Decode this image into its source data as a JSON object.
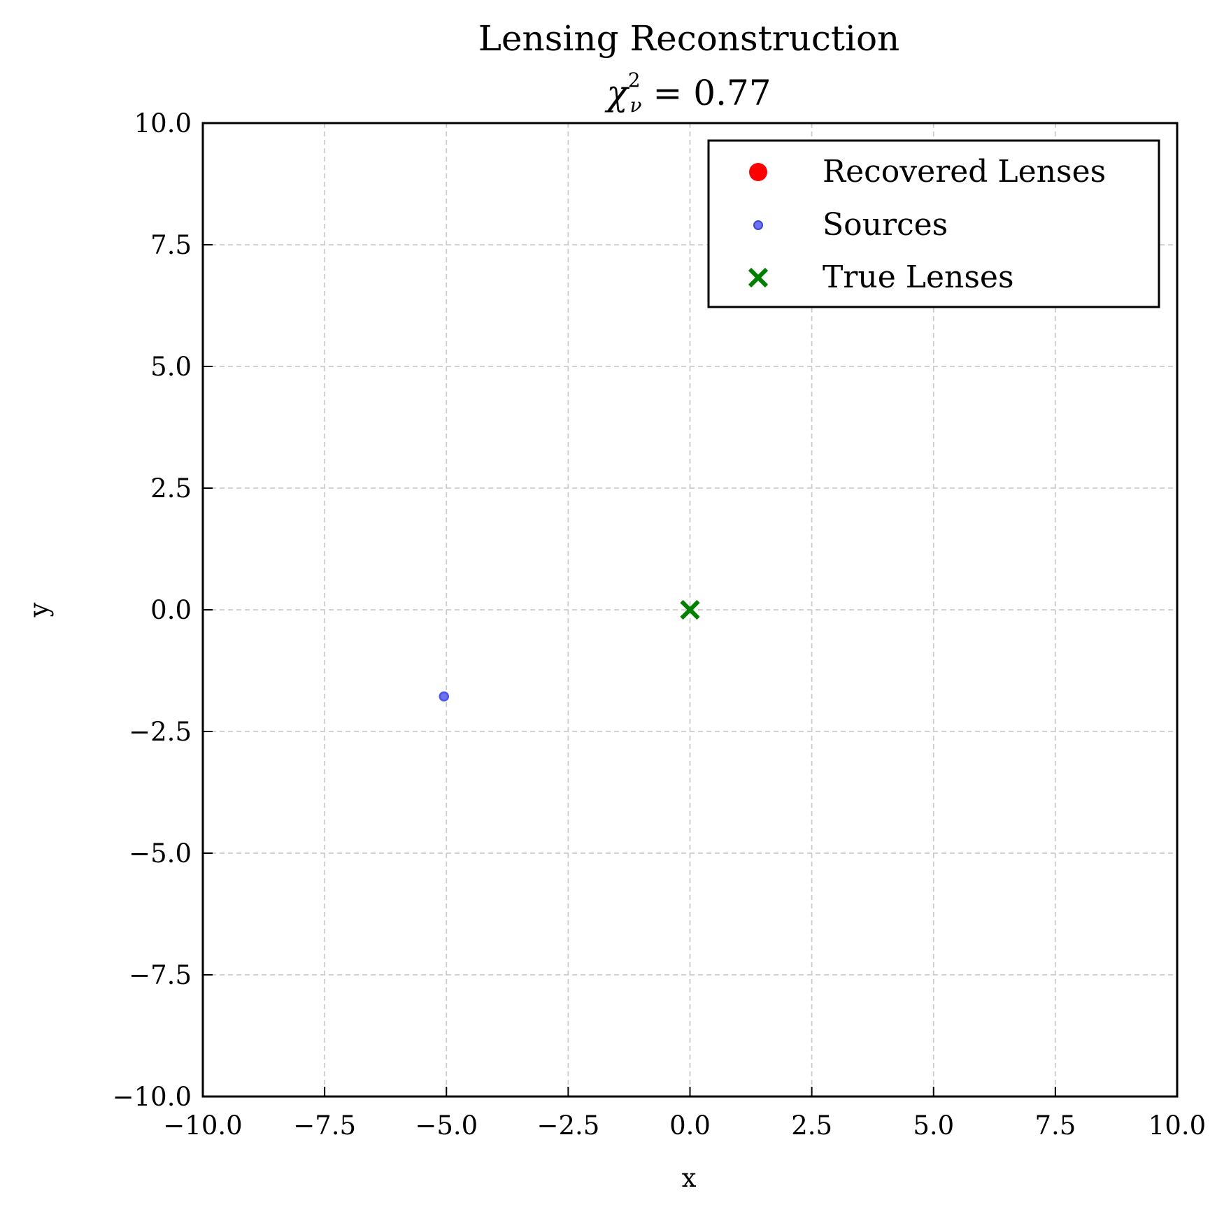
{
  "chart_data": {
    "type": "scatter",
    "title": "Lensing Reconstruction",
    "subtitle_parts": {
      "symbol": "χ",
      "superscript": "2",
      "subscript": "ν",
      "rest": " = 0.77"
    },
    "xlabel": "x",
    "ylabel": "y",
    "xlim": [
      -10,
      10
    ],
    "ylim": [
      -10,
      10
    ],
    "xticks": [
      -10,
      -7.5,
      -5,
      -2.5,
      0,
      2.5,
      5,
      7.5,
      10
    ],
    "yticks": [
      -10,
      -7.5,
      -5,
      -2.5,
      0,
      2.5,
      5,
      7.5,
      10
    ],
    "xtick_labels": [
      "−10.0",
      "−7.5",
      "−5.0",
      "−2.5",
      "0.0",
      "2.5",
      "5.0",
      "7.5",
      "10.0"
    ],
    "ytick_labels": [
      "−10.0",
      "−7.5",
      "−5.0",
      "−2.5",
      "0.0",
      "2.5",
      "5.0",
      "7.5",
      "10.0"
    ],
    "grid": true,
    "legend_position": "top-right",
    "series": [
      {
        "name": "Recovered Lenses",
        "marker": "circle",
        "color": "#ff0000",
        "points": []
      },
      {
        "name": "Sources",
        "marker": "small-circle",
        "color": "#4a55e8",
        "points": [
          {
            "x": -5.05,
            "y": -1.78
          }
        ]
      },
      {
        "name": "True Lenses",
        "marker": "x",
        "color": "#008000",
        "points": [
          {
            "x": 0.0,
            "y": 0.0
          }
        ]
      }
    ]
  }
}
